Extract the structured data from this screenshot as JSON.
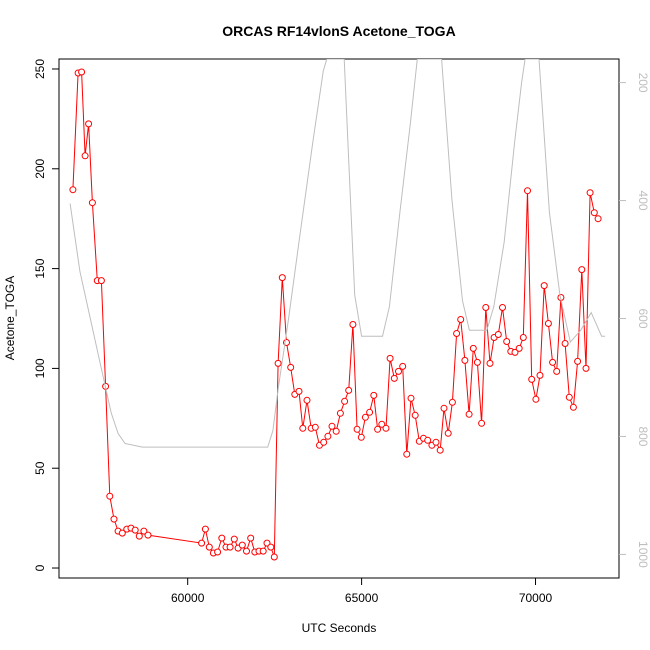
{
  "chart_data": {
    "type": "line",
    "title": "ORCAS RF14vlonS Acetone_TOGA",
    "xlabel": "UTC Seconds",
    "ylabel": "Acetone_TOGA",
    "xlim": [
      56300,
      72400
    ],
    "ylim": [
      -5,
      255
    ],
    "x_ticks": [
      60000,
      65000,
      70000
    ],
    "y_ticks": [
      0,
      50,
      100,
      150,
      200,
      250
    ],
    "right_axis": {
      "lim": [
        1040,
        160
      ],
      "ticks": [
        200,
        400,
        600,
        800,
        1000
      ],
      "color": "#bebebe"
    },
    "grid": false,
    "series": [
      {
        "color": "#ff0000",
        "marker": "open-circle",
        "points": [
          [
            56700,
            189.5
          ],
          [
            56850,
            248
          ],
          [
            56950,
            248.5
          ],
          [
            57050,
            206.5
          ],
          [
            57150,
            222.5
          ],
          [
            57260,
            183
          ],
          [
            57400,
            144
          ],
          [
            57520,
            144
          ],
          [
            57640,
            91
          ],
          [
            57760,
            36
          ],
          [
            57880,
            24.5
          ],
          [
            58000,
            18.5
          ],
          [
            58120,
            17.5
          ],
          [
            58250,
            19.5
          ],
          [
            58370,
            20
          ],
          [
            58490,
            19
          ],
          [
            58610,
            16
          ],
          [
            58740,
            18.5
          ],
          [
            58860,
            16.5
          ],
          [
            60400,
            12.5
          ],
          [
            60510,
            19.5
          ],
          [
            60620,
            10.5
          ],
          [
            60740,
            7.5
          ],
          [
            60860,
            8
          ],
          [
            60980,
            15
          ],
          [
            61100,
            10.5
          ],
          [
            61220,
            10.5
          ],
          [
            61340,
            14.5
          ],
          [
            61450,
            10
          ],
          [
            61570,
            11.5
          ],
          [
            61690,
            8.5
          ],
          [
            61810,
            15
          ],
          [
            61930,
            8
          ],
          [
            62050,
            8.5
          ],
          [
            62170,
            8.5
          ],
          [
            62280,
            12.5
          ],
          [
            62390,
            10.5
          ],
          [
            62490,
            5.5
          ],
          [
            62600,
            102.5
          ],
          [
            62720,
            145.5
          ],
          [
            62840,
            113
          ],
          [
            62960,
            100.5
          ],
          [
            63080,
            87
          ],
          [
            63200,
            88.5
          ],
          [
            63310,
            70
          ],
          [
            63430,
            84
          ],
          [
            63550,
            70
          ],
          [
            63670,
            70.5
          ],
          [
            63790,
            61.5
          ],
          [
            63910,
            63
          ],
          [
            64030,
            66
          ],
          [
            64150,
            71
          ],
          [
            64270,
            68.5
          ],
          [
            64390,
            77.5
          ],
          [
            64510,
            83.5
          ],
          [
            64630,
            89
          ],
          [
            64750,
            122
          ],
          [
            64870,
            69.5
          ],
          [
            64990,
            65.5
          ],
          [
            65110,
            75.5
          ],
          [
            65230,
            78
          ],
          [
            65350,
            86.5
          ],
          [
            65460,
            69.5
          ],
          [
            65580,
            72
          ],
          [
            65700,
            70
          ],
          [
            65820,
            105
          ],
          [
            65940,
            95
          ],
          [
            66060,
            98.5
          ],
          [
            66180,
            101
          ],
          [
            66300,
            57
          ],
          [
            66420,
            85
          ],
          [
            66540,
            76.5
          ],
          [
            66660,
            63.5
          ],
          [
            66780,
            65
          ],
          [
            66900,
            64
          ],
          [
            67020,
            61.5
          ],
          [
            67140,
            63
          ],
          [
            67260,
            59
          ],
          [
            67370,
            80
          ],
          [
            67490,
            67.5
          ],
          [
            67610,
            83
          ],
          [
            67730,
            117.5
          ],
          [
            67850,
            124.5
          ],
          [
            67970,
            104
          ],
          [
            68090,
            77
          ],
          [
            68210,
            110
          ],
          [
            68330,
            103
          ],
          [
            68450,
            72.5
          ],
          [
            68570,
            130.5
          ],
          [
            68690,
            102.5
          ],
          [
            68810,
            115.5
          ],
          [
            68930,
            117
          ],
          [
            69050,
            130.5
          ],
          [
            69170,
            113.5
          ],
          [
            69290,
            108.5
          ],
          [
            69410,
            108
          ],
          [
            69530,
            110
          ],
          [
            69650,
            115.5
          ],
          [
            69770,
            189
          ],
          [
            69890,
            94.5
          ],
          [
            70010,
            84.5
          ],
          [
            70130,
            96.5
          ],
          [
            70250,
            141.5
          ],
          [
            70370,
            122.5
          ],
          [
            70490,
            103
          ],
          [
            70610,
            98.5
          ],
          [
            70730,
            135.5
          ],
          [
            70850,
            112.5
          ],
          [
            70970,
            85.5
          ],
          [
            71090,
            80.5
          ],
          [
            71210,
            103.5
          ],
          [
            71330,
            149.5
          ],
          [
            71450,
            100
          ],
          [
            71570,
            188
          ],
          [
            71690,
            178
          ],
          [
            71800,
            175
          ]
        ]
      },
      {
        "color": "#bebebe",
        "axis": "right",
        "points": [
          [
            56620,
            405
          ],
          [
            56900,
            520
          ],
          [
            57200,
            600
          ],
          [
            57500,
            680
          ],
          [
            57800,
            760
          ],
          [
            58000,
            795
          ],
          [
            58200,
            812
          ],
          [
            58700,
            818
          ],
          [
            62300,
            818
          ],
          [
            62450,
            790
          ],
          [
            62600,
            720
          ],
          [
            62900,
            600
          ],
          [
            63200,
            470
          ],
          [
            63600,
            300
          ],
          [
            63900,
            180
          ],
          [
            64000,
            160
          ],
          [
            64500,
            160
          ],
          [
            64800,
            560
          ],
          [
            65000,
            630
          ],
          [
            65600,
            630
          ],
          [
            65800,
            580
          ],
          [
            66100,
            420
          ],
          [
            66400,
            270
          ],
          [
            66600,
            160
          ],
          [
            67300,
            160
          ],
          [
            67600,
            400
          ],
          [
            67900,
            570
          ],
          [
            68100,
            620
          ],
          [
            68600,
            620
          ],
          [
            68800,
            580
          ],
          [
            69100,
            470
          ],
          [
            69400,
            300
          ],
          [
            69600,
            200
          ],
          [
            69700,
            160
          ],
          [
            70100,
            160
          ],
          [
            70400,
            420
          ],
          [
            70700,
            560
          ],
          [
            71000,
            640
          ],
          [
            71300,
            620
          ],
          [
            71600,
            590
          ],
          [
            71900,
            630
          ],
          [
            72000,
            630
          ]
        ]
      }
    ]
  }
}
